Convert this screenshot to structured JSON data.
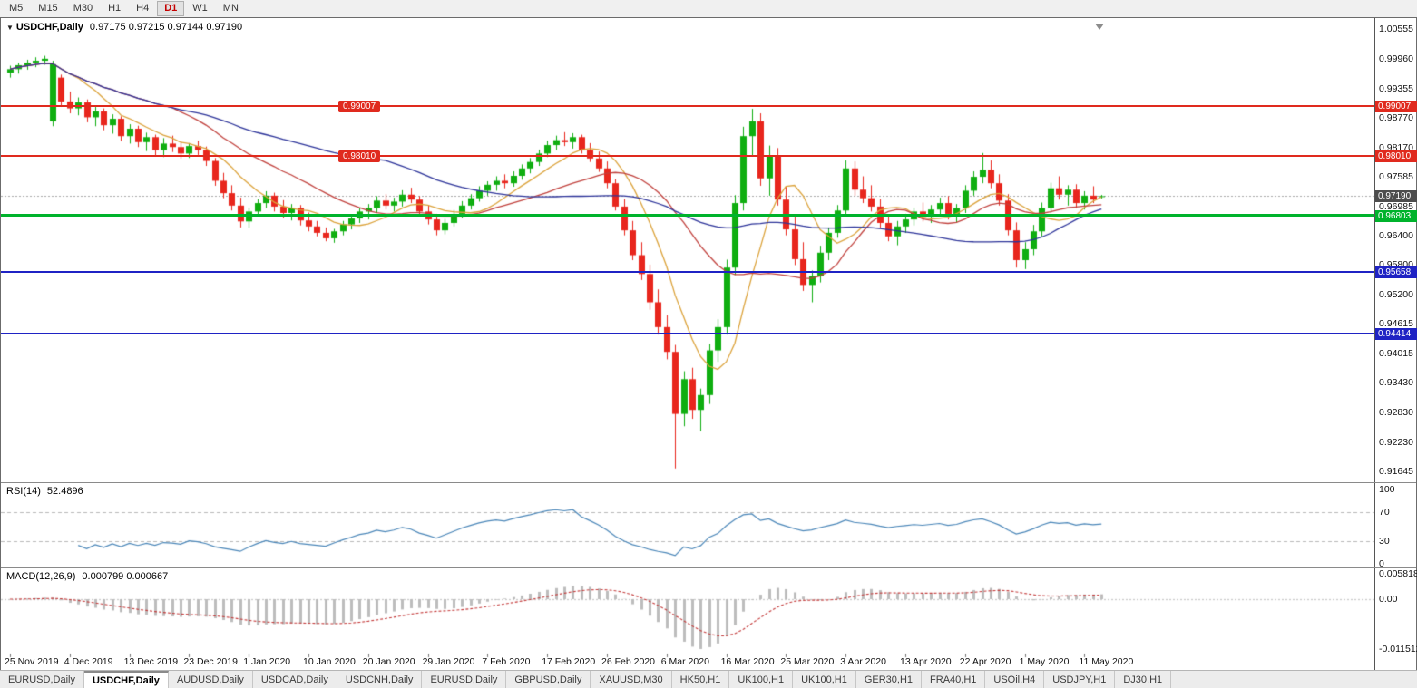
{
  "toolbar": {
    "timeframes": [
      "M5",
      "M15",
      "M30",
      "H1",
      "H4",
      "D1",
      "W1",
      "MN"
    ],
    "active": "D1"
  },
  "chart": {
    "symbol": "USDCHF,Daily",
    "ohlc": "0.97175 0.97215 0.97144 0.97190"
  },
  "current_price": {
    "price": 0.9719,
    "label": "0.97190",
    "tag_color": "#4d4d4d"
  },
  "hlines": [
    {
      "price": 0.99007,
      "label": "0.99007",
      "color": "#e02a1e",
      "width": 2,
      "mid_label": true
    },
    {
      "price": 0.9801,
      "label": "0.98010",
      "color": "#e02a1e",
      "width": 2,
      "mid_label": true
    },
    {
      "price": 0.96803,
      "label": "0.96803",
      "color": "#00b32c",
      "width": 3,
      "mid_label": false
    },
    {
      "price": 0.95658,
      "label": "0.95658",
      "color": "#1f23c4",
      "width": 2,
      "mid_label": false
    },
    {
      "price": 0.94414,
      "label": "0.94414",
      "color": "#1f23c4",
      "width": 2,
      "mid_label": false
    }
  ],
  "price_axis": {
    "labels": [
      "1.00555",
      "0.99960",
      "0.99355",
      "0.98770",
      "0.98170",
      "0.97585",
      "0.96985",
      "0.96400",
      "0.95800",
      "0.95200",
      "0.94615",
      "0.94015",
      "0.93430",
      "0.92830",
      "0.92230",
      "0.91645"
    ]
  },
  "rsi": {
    "title": "RSI(14)",
    "value": "52.4896",
    "levels": [
      {
        "value": 100,
        "label": "100"
      },
      {
        "value": 70,
        "label": "70"
      },
      {
        "value": 30,
        "label": "30"
      },
      {
        "value": 0,
        "label": "0"
      }
    ]
  },
  "macd": {
    "title": "MACD(12,26,9)",
    "values": "0.000799 0.000667",
    "axis": [
      {
        "value": 0.005818,
        "label": "0.0058180"
      },
      {
        "value": 0,
        "label": "0.00"
      },
      {
        "value": -0.011512,
        "label": "-0.0115120"
      }
    ]
  },
  "tabs": [
    {
      "label": "EURUSD,Daily",
      "active": false
    },
    {
      "label": "USDCHF,Daily",
      "active": true
    },
    {
      "label": "AUDUSD,Daily",
      "active": false
    },
    {
      "label": "USDCAD,Daily",
      "active": false
    },
    {
      "label": "USDCNH,Daily",
      "active": false
    },
    {
      "label": "EURUSD,Daily",
      "active": false
    },
    {
      "label": "GBPUSD,Daily",
      "active": false
    },
    {
      "label": "XAUUSD,M30",
      "active": false
    },
    {
      "label": "HK50,H1",
      "active": false
    },
    {
      "label": "UK100,H1",
      "active": false
    },
    {
      "label": "UK100,H1",
      "active": false
    },
    {
      "label": "GER30,H1",
      "active": false
    },
    {
      "label": "FRA40,H1",
      "active": false
    },
    {
      "label": "USOil,H4",
      "active": false
    },
    {
      "label": "USDJPY,H1",
      "active": false
    },
    {
      "label": "DJ30,H1",
      "active": false
    }
  ],
  "chart_data": {
    "type": "candlestick",
    "symbol": "USDCHF",
    "timeframe": "Daily",
    "title": "USDCHF,Daily",
    "price_range": [
      0.9144,
      1.0078
    ],
    "colors": {
      "up": "#0fae10",
      "down": "#e8261d"
    },
    "tick_every": 7,
    "tick_labels": [
      "25 Nov 2019",
      "4 Dec 2019",
      "13 Dec 2019",
      "23 Dec 2019",
      "1 Jan 2020",
      "10 Jan 2020",
      "20 Jan 2020",
      "29 Jan 2020",
      "7 Feb 2020",
      "17 Feb 2020",
      "26 Feb 2020",
      "6 Mar 2020",
      "16 Mar 2020",
      "25 Mar 2020",
      "3 Apr 2020",
      "13 Apr 2020",
      "22 Apr 2020",
      "1 May 2020",
      "11 May 2020"
    ],
    "overlays": [
      {
        "name": "fast-ma",
        "period": 8,
        "color": "#dba23a"
      },
      {
        "name": "mid-ma",
        "period": 20,
        "color": "#c0403c"
      },
      {
        "name": "slow-ma",
        "period": 45,
        "color": "#2c3399"
      }
    ],
    "indicators": {
      "rsi": {
        "period": 14,
        "color": "#4a86b8",
        "last": "52.4896",
        "levels": [
          70,
          30
        ]
      },
      "macd": {
        "fast": 12,
        "slow": 26,
        "signal": 9,
        "last": "0.000799",
        "signal_last": "0.000667",
        "histogram_color": "#bdbdbd",
        "signal_color": "#c43b3b"
      }
    },
    "candles": [
      [
        0.9968,
        0.9982,
        0.9958,
        0.9975
      ],
      [
        0.9975,
        0.9988,
        0.9966,
        0.9983
      ],
      [
        0.9983,
        0.9994,
        0.9974,
        0.9988
      ],
      [
        0.9988,
        0.9999,
        0.9979,
        0.9992
      ],
      [
        0.9992,
        1.0002,
        0.9984,
        0.9996
      ],
      [
        0.987,
        0.9992,
        0.986,
        0.9985
      ],
      [
        0.9958,
        0.9964,
        0.99,
        0.991
      ],
      [
        0.991,
        0.993,
        0.9886,
        0.9896
      ],
      [
        0.9896,
        0.9918,
        0.9882,
        0.9908
      ],
      [
        0.9908,
        0.9914,
        0.9868,
        0.9878
      ],
      [
        0.9878,
        0.99,
        0.986,
        0.989
      ],
      [
        0.989,
        0.9896,
        0.9852,
        0.9862
      ],
      [
        0.9862,
        0.9884,
        0.9845,
        0.9875
      ],
      [
        0.9875,
        0.988,
        0.983,
        0.984
      ],
      [
        0.984,
        0.9864,
        0.9825,
        0.9855
      ],
      [
        0.9855,
        0.9861,
        0.9818,
        0.9828
      ],
      [
        0.9828,
        0.9847,
        0.981,
        0.9838
      ],
      [
        0.9838,
        0.9843,
        0.98,
        0.9812
      ],
      [
        0.9812,
        0.9836,
        0.9798,
        0.9825
      ],
      [
        0.9825,
        0.9841,
        0.9808,
        0.9818
      ],
      [
        0.9818,
        0.9829,
        0.9795,
        0.9805
      ],
      [
        0.9805,
        0.9826,
        0.9796,
        0.982
      ],
      [
        0.982,
        0.9831,
        0.9802,
        0.9812
      ],
      [
        0.9812,
        0.9819,
        0.978,
        0.979
      ],
      [
        0.979,
        0.9796,
        0.974,
        0.975
      ],
      [
        0.975,
        0.9766,
        0.9715,
        0.9725
      ],
      [
        0.9725,
        0.9741,
        0.969,
        0.97
      ],
      [
        0.97,
        0.9716,
        0.9656,
        0.9668
      ],
      [
        0.9668,
        0.9696,
        0.9655,
        0.9688
      ],
      [
        0.9688,
        0.9713,
        0.968,
        0.9705
      ],
      [
        0.9705,
        0.9729,
        0.9695,
        0.972
      ],
      [
        0.972,
        0.9726,
        0.9688,
        0.9698
      ],
      [
        0.9698,
        0.9711,
        0.9675,
        0.9685
      ],
      [
        0.9685,
        0.9703,
        0.967,
        0.9695
      ],
      [
        0.9695,
        0.9701,
        0.966,
        0.967
      ],
      [
        0.967,
        0.9686,
        0.9648,
        0.9658
      ],
      [
        0.9658,
        0.9669,
        0.9638,
        0.9645
      ],
      [
        0.9645,
        0.9656,
        0.9628,
        0.9634
      ],
      [
        0.9634,
        0.9653,
        0.9625,
        0.9648
      ],
      [
        0.9648,
        0.9669,
        0.964,
        0.9662
      ],
      [
        0.9662,
        0.9681,
        0.9652,
        0.9674
      ],
      [
        0.9674,
        0.9695,
        0.9665,
        0.9688
      ],
      [
        0.9688,
        0.9703,
        0.9672,
        0.9695
      ],
      [
        0.9695,
        0.9719,
        0.9685,
        0.971
      ],
      [
        0.971,
        0.9723,
        0.9692,
        0.97
      ],
      [
        0.97,
        0.9716,
        0.9688,
        0.9708
      ],
      [
        0.9708,
        0.9731,
        0.9698,
        0.9722
      ],
      [
        0.9722,
        0.9736,
        0.9705,
        0.9712
      ],
      [
        0.9712,
        0.9719,
        0.968,
        0.9688
      ],
      [
        0.9688,
        0.9701,
        0.9662,
        0.9672
      ],
      [
        0.9672,
        0.9683,
        0.964,
        0.965
      ],
      [
        0.965,
        0.9673,
        0.9642,
        0.9665
      ],
      [
        0.9665,
        0.9691,
        0.9658,
        0.9682
      ],
      [
        0.9682,
        0.9709,
        0.9675,
        0.97
      ],
      [
        0.97,
        0.9723,
        0.9692,
        0.9715
      ],
      [
        0.9715,
        0.9739,
        0.9708,
        0.973
      ],
      [
        0.973,
        0.9749,
        0.972,
        0.9742
      ],
      [
        0.9742,
        0.9759,
        0.973,
        0.975
      ],
      [
        0.975,
        0.9763,
        0.9735,
        0.9745
      ],
      [
        0.9745,
        0.9769,
        0.9738,
        0.976
      ],
      [
        0.976,
        0.9783,
        0.9752,
        0.9775
      ],
      [
        0.9775,
        0.9796,
        0.9765,
        0.9788
      ],
      [
        0.9788,
        0.9813,
        0.978,
        0.9805
      ],
      [
        0.9805,
        0.9831,
        0.9798,
        0.9822
      ],
      [
        0.9822,
        0.9841,
        0.9812,
        0.9832
      ],
      [
        0.9832,
        0.9848,
        0.982,
        0.9828
      ],
      [
        0.9828,
        0.9846,
        0.9815,
        0.9838
      ],
      [
        0.9838,
        0.9843,
        0.9805,
        0.9812
      ],
      [
        0.9812,
        0.9826,
        0.9788,
        0.9795
      ],
      [
        0.9795,
        0.9809,
        0.9768,
        0.9775
      ],
      [
        0.9775,
        0.9789,
        0.9735,
        0.9745
      ],
      [
        0.9745,
        0.9753,
        0.969,
        0.9698
      ],
      [
        0.9698,
        0.9713,
        0.964,
        0.965
      ],
      [
        0.965,
        0.9669,
        0.959,
        0.96
      ],
      [
        0.96,
        0.9626,
        0.955,
        0.9562
      ],
      [
        0.9562,
        0.9581,
        0.949,
        0.9505
      ],
      [
        0.9505,
        0.9531,
        0.944,
        0.9455
      ],
      [
        0.9455,
        0.9479,
        0.939,
        0.9405
      ],
      [
        0.9405,
        0.9419,
        0.917,
        0.928
      ],
      [
        0.928,
        0.9366,
        0.9255,
        0.935
      ],
      [
        0.935,
        0.9373,
        0.927,
        0.9288
      ],
      [
        0.9288,
        0.9331,
        0.9245,
        0.9318
      ],
      [
        0.9318,
        0.9421,
        0.93,
        0.9408
      ],
      [
        0.9408,
        0.9471,
        0.9385,
        0.9455
      ],
      [
        0.9455,
        0.9591,
        0.944,
        0.9575
      ],
      [
        0.9575,
        0.9721,
        0.956,
        0.9705
      ],
      [
        0.9705,
        0.9859,
        0.969,
        0.984
      ],
      [
        0.984,
        0.9895,
        0.98,
        0.987
      ],
      [
        0.987,
        0.9886,
        0.974,
        0.9755
      ],
      [
        0.9755,
        0.9821,
        0.972,
        0.98
      ],
      [
        0.98,
        0.9816,
        0.97,
        0.9712
      ],
      [
        0.9712,
        0.9739,
        0.964,
        0.9652
      ],
      [
        0.9652,
        0.9681,
        0.958,
        0.9592
      ],
      [
        0.9592,
        0.9626,
        0.9528,
        0.954
      ],
      [
        0.954,
        0.9569,
        0.9505,
        0.9558
      ],
      [
        0.9558,
        0.9619,
        0.9545,
        0.9605
      ],
      [
        0.9605,
        0.9656,
        0.959,
        0.9645
      ],
      [
        0.9645,
        0.9701,
        0.9635,
        0.969
      ],
      [
        0.969,
        0.9791,
        0.968,
        0.9775
      ],
      [
        0.9775,
        0.9789,
        0.972,
        0.9732
      ],
      [
        0.9732,
        0.9759,
        0.9705,
        0.9715
      ],
      [
        0.9715,
        0.9741,
        0.9688,
        0.9698
      ],
      [
        0.9698,
        0.9713,
        0.9655,
        0.9665
      ],
      [
        0.9665,
        0.9681,
        0.9628,
        0.9638
      ],
      [
        0.9638,
        0.9669,
        0.962,
        0.9658
      ],
      [
        0.9658,
        0.9683,
        0.9645,
        0.9672
      ],
      [
        0.9672,
        0.9696,
        0.966,
        0.9688
      ],
      [
        0.9688,
        0.9706,
        0.9668,
        0.9678
      ],
      [
        0.9678,
        0.9701,
        0.9665,
        0.9692
      ],
      [
        0.9692,
        0.9716,
        0.968,
        0.9705
      ],
      [
        0.9705,
        0.9719,
        0.9672,
        0.9682
      ],
      [
        0.9682,
        0.9703,
        0.9665,
        0.9695
      ],
      [
        0.9695,
        0.9741,
        0.9685,
        0.973
      ],
      [
        0.973,
        0.9769,
        0.972,
        0.9758
      ],
      [
        0.9758,
        0.9806,
        0.9745,
        0.9772
      ],
      [
        0.9772,
        0.9791,
        0.9735,
        0.9745
      ],
      [
        0.9745,
        0.9763,
        0.97,
        0.971
      ],
      [
        0.971,
        0.9723,
        0.964,
        0.965
      ],
      [
        0.965,
        0.9666,
        0.9575,
        0.959
      ],
      [
        0.959,
        0.9626,
        0.9572,
        0.9612
      ],
      [
        0.9612,
        0.9661,
        0.96,
        0.9648
      ],
      [
        0.9648,
        0.9706,
        0.9638,
        0.9695
      ],
      [
        0.9695,
        0.9746,
        0.9685,
        0.9735
      ],
      [
        0.9735,
        0.9759,
        0.9712,
        0.9722
      ],
      [
        0.9722,
        0.9741,
        0.97,
        0.9732
      ],
      [
        0.9732,
        0.9743,
        0.9695,
        0.9705
      ],
      [
        0.9705,
        0.9729,
        0.9692,
        0.972
      ],
      [
        0.972,
        0.9739,
        0.9705,
        0.9712
      ],
      [
        0.97175,
        0.97215,
        0.97144,
        0.9719
      ]
    ]
  }
}
